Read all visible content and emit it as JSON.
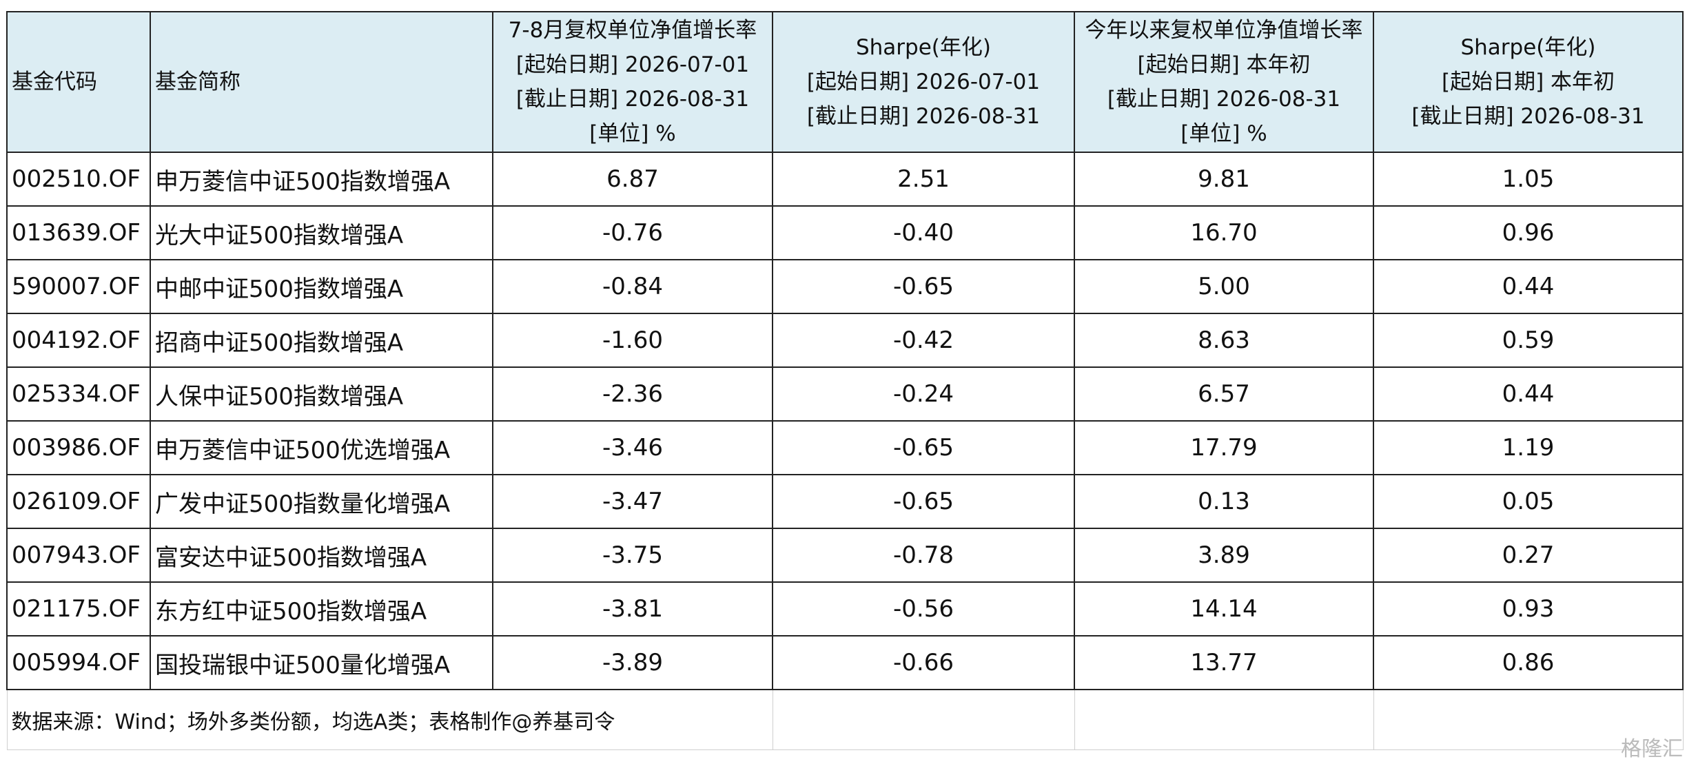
{
  "table": {
    "header": [
      [
        "基金代码"
      ],
      [
        "基金简称"
      ],
      [
        "7-8月复权单位净值增长率",
        "[起始日期] 2026-07-01",
        "[截止日期] 2026-08-31",
        "[单位] %"
      ],
      [
        "Sharpe(年化)",
        "[起始日期] 2026-07-01",
        "[截止日期] 2026-08-31"
      ],
      [
        "今年以来复权单位净值增长率",
        "[起始日期] 本年初",
        "[截止日期] 2026-08-31",
        "[单位] %"
      ],
      [
        "Sharpe(年化)",
        "[起始日期] 本年初",
        "[截止日期] 2026-08-31"
      ]
    ],
    "rows": [
      [
        "002510.OF",
        "申万菱信中证500指数增强A",
        "6.87",
        "2.51",
        "9.81",
        "1.05"
      ],
      [
        "013639.OF",
        "光大中证500指数增强A",
        "-0.76",
        "-0.40",
        "16.70",
        "0.96"
      ],
      [
        "590007.OF",
        "中邮中证500指数增强A",
        "-0.84",
        "-0.65",
        "5.00",
        "0.44"
      ],
      [
        "004192.OF",
        "招商中证500指数增强A",
        "-1.60",
        "-0.42",
        "8.63",
        "0.59"
      ],
      [
        "025334.OF",
        "人保中证500指数增强A",
        "-2.36",
        "-0.24",
        "6.57",
        "0.44"
      ],
      [
        "003986.OF",
        "申万菱信中证500优选增强A",
        "-3.46",
        "-0.65",
        "17.79",
        "1.19"
      ],
      [
        "026109.OF",
        "广发中证500指数量化增强A",
        "-3.47",
        "-0.65",
        "0.13",
        "0.05"
      ],
      [
        "007943.OF",
        "富安达中证500指数增强A",
        "-3.75",
        "-0.78",
        "3.89",
        "0.27"
      ],
      [
        "021175.OF",
        "东方红中证500指数增强A",
        "-3.81",
        "-0.56",
        "14.14",
        "0.93"
      ],
      [
        "005994.OF",
        "国投瑞银中证500量化增强A",
        "-3.89",
        "-0.66",
        "13.77",
        "0.86"
      ]
    ],
    "note": "数据来源：Wind；场外多类份额，均选A类；表格制作@养基司令"
  },
  "watermark": "格隆汇"
}
